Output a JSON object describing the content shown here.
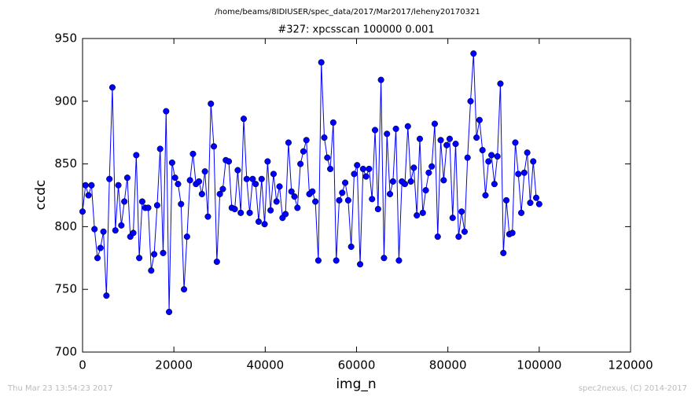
{
  "chart_data": {
    "type": "line",
    "suptitle": "/home/beams/8IDIUSER/spec_data/2017/Mar2017/leheny20170321",
    "title": "#327: xpcsscan 100000 0.001",
    "xlabel": "img_n",
    "ylabel": "ccdc",
    "footer_left": "Thu Mar 23 13:54:23 2017",
    "footer_right": "spec2nexus, (C) 2014-2017",
    "color": "#0000ff",
    "xlim": [
      0,
      120000
    ],
    "xticks": [
      0,
      20000,
      40000,
      60000,
      80000,
      100000,
      120000
    ],
    "ylim": [
      700,
      950
    ],
    "yticks": [
      700,
      750,
      800,
      850,
      900,
      950
    ],
    "x": [
      0,
      654,
      1307,
      1961,
      2614,
      3268,
      3922,
      4575,
      5229,
      5882,
      6536,
      7190,
      7843,
      8497,
      9150,
      9804,
      10458,
      11111,
      11765,
      12418,
      13072,
      13725,
      14379,
      15033,
      15686,
      16340,
      16993,
      17647,
      18301,
      18954,
      19608,
      20261,
      20915,
      21569,
      22222,
      22876,
      23529,
      24183,
      24837,
      25490,
      26144,
      26797,
      27451,
      28105,
      28758,
      29412,
      30065,
      30719,
      31373,
      32026,
      32680,
      33333,
      33987,
      34641,
      35294,
      35948,
      36601,
      37255,
      37908,
      38562,
      39216,
      39869,
      40523,
      41176,
      41830,
      42484,
      43137,
      43791,
      44444,
      45098,
      45752,
      46405,
      47059,
      47712,
      48366,
      49020,
      49673,
      50327,
      50980,
      51634,
      52288,
      52941,
      53595,
      54248,
      54902,
      55556,
      56209,
      56863,
      57516,
      58170,
      58824,
      59477,
      60131,
      60784,
      61438,
      62092,
      62745,
      63399,
      64052,
      64706,
      65359,
      66013,
      66667,
      67320,
      67974,
      68627,
      69281,
      69935,
      70588,
      71242,
      71895,
      72549,
      73203,
      73856,
      74510,
      75163,
      75817,
      76471,
      77124,
      77778,
      78431,
      79085,
      79739,
      80392,
      81046,
      81699,
      82353,
      83007,
      83660,
      84314,
      84967,
      85621,
      86275,
      86928,
      87582,
      88235,
      88889,
      89542,
      90196,
      90850,
      91503,
      92157,
      92810,
      93464,
      94118,
      94771,
      95425,
      96078,
      96732,
      97386,
      98039,
      98693,
      99346,
      100000
    ],
    "values": [
      812,
      833,
      825,
      833,
      798,
      775,
      783,
      796,
      745,
      838,
      911,
      797,
      833,
      801,
      820,
      839,
      792,
      795,
      857,
      775,
      820,
      815,
      815,
      765,
      778,
      817,
      862,
      779,
      892,
      732,
      851,
      839,
      834,
      818,
      750,
      792,
      837,
      858,
      834,
      836,
      826,
      844,
      808,
      898,
      864,
      772,
      826,
      830,
      853,
      852,
      815,
      814,
      845,
      811,
      886,
      838,
      811,
      838,
      834,
      804,
      838,
      802,
      852,
      813,
      842,
      820,
      832,
      807,
      810,
      867,
      828,
      824,
      815,
      850,
      860,
      869,
      826,
      828,
      820,
      773,
      931,
      871,
      855,
      846,
      883,
      773,
      821,
      827,
      835,
      821,
      784,
      842,
      849,
      770,
      846,
      840,
      846,
      822,
      877,
      814,
      917,
      775,
      874,
      826,
      836,
      878,
      773,
      836,
      834,
      880,
      836,
      847,
      809,
      870,
      811,
      829,
      843,
      848,
      882,
      792,
      869,
      837,
      865,
      870,
      807,
      866,
      792,
      812,
      796,
      855,
      900,
      938,
      871,
      885,
      861,
      825,
      852,
      857,
      834,
      856,
      914,
      779,
      821,
      794,
      795,
      867,
      842,
      811,
      843,
      859,
      819,
      852,
      823,
      818
    ]
  }
}
